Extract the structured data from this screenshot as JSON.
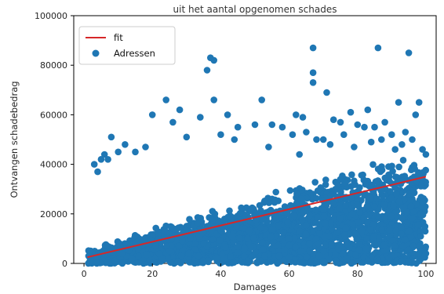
{
  "chart_data": {
    "type": "scatter",
    "title": "uit het aantal opgenomen schades",
    "xlabel": "Damages",
    "ylabel": "Ontvangen schadebedrag",
    "xlim": [
      -3,
      103
    ],
    "ylim": [
      0,
      100000
    ],
    "xticks": [
      0,
      20,
      40,
      60,
      80,
      100
    ],
    "yticks": [
      0,
      20000,
      40000,
      60000,
      80000,
      100000
    ],
    "grid": false,
    "legend_position": "top-left",
    "colors": {
      "scatter": "#1f77b4",
      "fit": "#d62728"
    },
    "series": [
      {
        "name": "fit",
        "kind": "line",
        "x": [
          1,
          100
        ],
        "y": [
          2500,
          35000
        ]
      },
      {
        "name": "Adressen",
        "kind": "scatter",
        "x": [
          36,
          38,
          37,
          67,
          67,
          67,
          86,
          95,
          71,
          24,
          38,
          20,
          26,
          34,
          42,
          28,
          52,
          62,
          55,
          78,
          83,
          92,
          98,
          97,
          64,
          73,
          88,
          80,
          85,
          75,
          90,
          94,
          8,
          12,
          10,
          15,
          6,
          18,
          5,
          3,
          4,
          7,
          30,
          45,
          40,
          50,
          58,
          65,
          70,
          76,
          82,
          87,
          93,
          99,
          100,
          96,
          44,
          54,
          61,
          68,
          79,
          91,
          63,
          72,
          84,
          66,
          70,
          47,
          57,
          35,
          25,
          22,
          14,
          16,
          11,
          9,
          2,
          100,
          99,
          86,
          93,
          48,
          83,
          77,
          60
        ],
        "y": [
          78000,
          82000,
          83000,
          87000,
          77000,
          73000,
          87000,
          85000,
          69000,
          66000,
          66000,
          60000,
          57000,
          59000,
          60000,
          62000,
          66000,
          60000,
          56000,
          61000,
          62000,
          65000,
          65000,
          60000,
          59000,
          58000,
          57000,
          56000,
          55000,
          57000,
          52000,
          53000,
          51000,
          48000,
          45000,
          45000,
          44000,
          47000,
          42000,
          40000,
          37000,
          42000,
          51000,
          55000,
          52000,
          56000,
          55000,
          53000,
          50000,
          52000,
          55000,
          50000,
          48000,
          46000,
          44000,
          50000,
          50000,
          47000,
          52000,
          50000,
          47000,
          46000,
          44000,
          48000,
          49000,
          8000,
          5000,
          6000,
          3000,
          8000,
          5000,
          4000,
          2000,
          3000,
          4000,
          1000,
          1000,
          4000,
          25000,
          1000,
          1000,
          1000,
          1000,
          2000,
          2500
        ]
      }
    ]
  }
}
